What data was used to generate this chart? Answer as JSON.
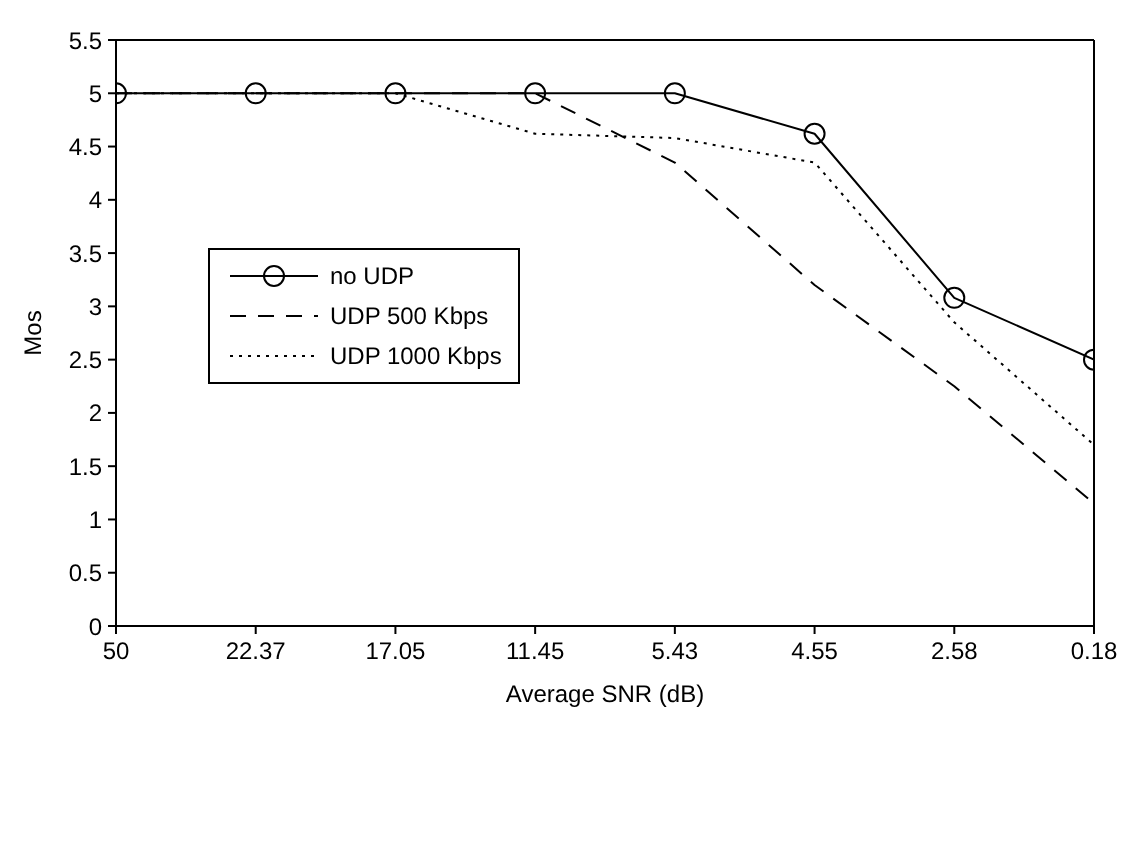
{
  "chart_data": {
    "type": "line",
    "xlabel": "Average SNR (dB)",
    "ylabel": "Mos",
    "categories": [
      "50",
      "22.37",
      "17.05",
      "11.45",
      "5.43",
      "4.55",
      "2.58",
      "0.18"
    ],
    "series": [
      {
        "name": "no UDP",
        "color": "#000000",
        "marker": "circle",
        "line_style": "solid",
        "values": [
          5,
          5,
          5,
          5,
          5,
          4.62,
          3.08,
          2.5
        ]
      },
      {
        "name": "UDP 500 Kbps",
        "color": "#000000",
        "marker": "none",
        "line_style": "dashed",
        "values": [
          5,
          5,
          5,
          5,
          4.35,
          3.2,
          2.25,
          1.15
        ]
      },
      {
        "name": "UDP 1000 Kbps",
        "color": "#000000",
        "marker": "none",
        "line_style": "dotted",
        "values": [
          5,
          5,
          5,
          4.62,
          4.58,
          4.35,
          2.85,
          1.7
        ]
      }
    ],
    "ylim": [
      0,
      5.5
    ],
    "yticks": [
      0,
      0.5,
      1,
      1.5,
      2,
      2.5,
      3,
      3.5,
      4,
      4.5,
      5,
      5.5
    ],
    "grid": false,
    "legend": "left"
  }
}
